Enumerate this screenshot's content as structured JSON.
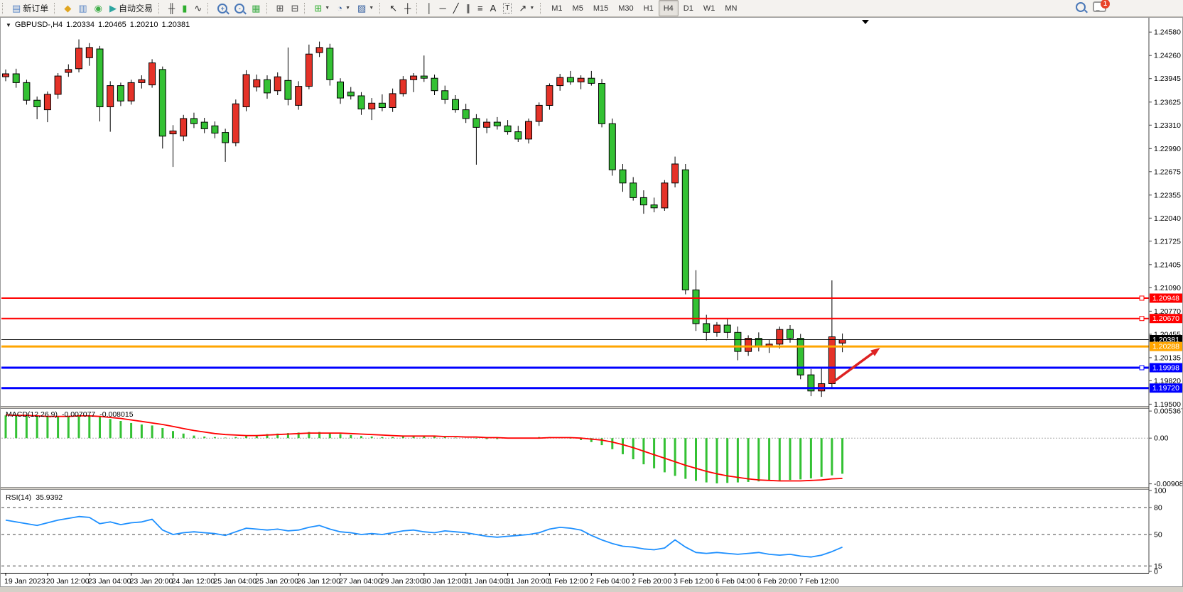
{
  "toolbar": {
    "groups": [
      {
        "items": [
          {
            "name": "new-order-button",
            "label": "新订单",
            "glyph": "▤",
            "color": "#5b87c5"
          }
        ]
      },
      {
        "items": [
          {
            "name": "metaquotes-community-button",
            "glyph": "◆",
            "color": "#e0a520"
          },
          {
            "name": "market-watch-button",
            "glyph": "▥",
            "color": "#5b87c5"
          },
          {
            "name": "signals-button",
            "glyph": "◉",
            "color": "#3fae49"
          },
          {
            "name": "autotrading-button",
            "label": "自动交易",
            "glyph": "▶",
            "color": "#2da5a0"
          }
        ]
      },
      {
        "items": [
          {
            "name": "bar-chart-button",
            "glyph": "╫",
            "color": "#333333"
          },
          {
            "name": "candlestick-chart-button",
            "glyph": "▮",
            "color": "#2fae2f"
          },
          {
            "name": "line-chart-button",
            "glyph": "∿",
            "color": "#333333"
          }
        ]
      },
      {
        "items": [
          {
            "name": "zoom-in-button",
            "glyph": "+",
            "magnifier": true
          },
          {
            "name": "zoom-out-button",
            "glyph": "-",
            "magnifier": true
          },
          {
            "name": "tile-windows-button",
            "glyph": "▦",
            "color": "#3fae49"
          }
        ]
      },
      {
        "items": [
          {
            "name": "new-chart-window-button",
            "glyph": "⊞",
            "color": "#444444"
          },
          {
            "name": "chart-profile-button",
            "glyph": "⊟",
            "color": "#444444"
          }
        ]
      },
      {
        "items": [
          {
            "name": "add-indicator-button",
            "glyph": "⊞",
            "color": "#2fae2f",
            "dropdown": true
          },
          {
            "name": "periods-clock-button",
            "glyph": "◔",
            "color": "#335e9e",
            "dropdown": true
          },
          {
            "name": "templates-button",
            "glyph": "▨",
            "color": "#335e9e",
            "dropdown": true
          }
        ]
      },
      {
        "items": [
          {
            "name": "cursor-button",
            "glyph": "↖",
            "color": "#222222"
          },
          {
            "name": "crosshair-button",
            "glyph": "┼",
            "color": "#222222"
          }
        ]
      },
      {
        "items": [
          {
            "name": "vertical-line-button",
            "glyph": "│",
            "color": "#222222"
          },
          {
            "name": "horizontal-line-button",
            "glyph": "─",
            "color": "#222222"
          },
          {
            "name": "trendline-button",
            "glyph": "╱",
            "color": "#222222"
          },
          {
            "name": "equidistant-channel-button",
            "glyph": "∥",
            "color": "#222222"
          },
          {
            "name": "fibonacci-button",
            "glyph": "≡",
            "color": "#222222"
          },
          {
            "name": "text-button",
            "glyph": "A",
            "color": "#222222"
          },
          {
            "name": "text-label-button",
            "glyph": "T",
            "color": "#222222",
            "boxed": true
          },
          {
            "name": "arrows-tool-button",
            "glyph": "↗",
            "color": "#222222",
            "dropdown": true
          }
        ]
      }
    ],
    "timeframes": [
      "M1",
      "M5",
      "M15",
      "M30",
      "H1",
      "H4",
      "D1",
      "W1",
      "MN"
    ],
    "active_timeframe": "H4",
    "chat_badge": "1"
  },
  "chart": {
    "header": {
      "symbol": "GBPUSD-,H4",
      "open": "1.20334",
      "high": "1.20465",
      "low": "1.20210",
      "close": "1.20381"
    },
    "macd_label": {
      "name": "MACD(12,26,9)",
      "main": "-0.007077",
      "signal": "-0.008015"
    },
    "rsi_label": {
      "name": "RSI(14)",
      "value": "35.9392"
    }
  },
  "chart_data": {
    "type": "candlestick",
    "symbol": "GBPUSD-",
    "timeframe": "H4",
    "price_axis": {
      "visible_range": [
        1.19475,
        1.24776
      ],
      "ticks": [
        1.2458,
        1.2426,
        1.23945,
        1.23625,
        1.2331,
        1.2299,
        1.22675,
        1.22355,
        1.2204,
        1.21725,
        1.21405,
        1.2109,
        1.2077,
        1.20455,
        1.20135,
        1.1982,
        1.195
      ]
    },
    "time_labels": [
      "19 Jan 2023",
      "20 Jan 12:00",
      "23 Jan 04:00",
      "23 Jan 20:00",
      "24 Jan 12:00",
      "25 Jan 04:00",
      "25 Jan 20:00",
      "26 Jan 12:00",
      "27 Jan 04:00",
      "29 Jan 23:00",
      "30 Jan 12:00",
      "31 Jan 04:00",
      "31 Jan 20:00",
      "1 Feb 12:00",
      "2 Feb 04:00",
      "2 Feb 20:00",
      "3 Feb 12:00",
      "6 Feb 04:00",
      "6 Feb 20:00",
      "7 Feb 12:00"
    ],
    "bars_per_time_tick": 4,
    "candles": {
      "open": [
        1.2397,
        1.2401,
        1.2389,
        1.2365,
        1.2352,
        1.2373,
        1.2403,
        1.2408,
        1.2423,
        1.2435,
        1.2356,
        1.2385,
        1.2364,
        1.2389,
        1.2386,
        1.2407,
        1.2319,
        1.2316,
        1.234,
        1.2335,
        1.233,
        1.2321,
        1.2307,
        1.2356,
        1.2383,
        1.2393,
        1.2378,
        1.2392,
        1.2358,
        1.2384,
        1.243,
        1.2436,
        1.239,
        1.2376,
        1.2371,
        1.2353,
        1.2361,
        1.2355,
        1.2374,
        1.2393,
        1.2398,
        1.2395,
        1.2378,
        1.2366,
        1.2352,
        1.234,
        1.2328,
        1.2335,
        1.233,
        1.2322,
        1.2312,
        1.2336,
        1.2358,
        1.2385,
        1.2396,
        1.239,
        1.2395,
        1.2388,
        1.2333,
        1.227,
        1.2252,
        1.2232,
        1.2222,
        1.2218,
        1.2252,
        1.227,
        1.2106,
        1.206,
        1.2048,
        1.2058,
        1.2048,
        1.2022,
        1.204,
        1.2028,
        1.2032,
        1.2052,
        1.204,
        1.199,
        1.1968,
        1.1978,
        1.20334
      ],
      "high": [
        1.2407,
        1.2408,
        1.2393,
        1.237,
        1.2377,
        1.2402,
        1.2414,
        1.2448,
        1.2443,
        1.2439,
        1.2391,
        1.2389,
        1.2393,
        1.2399,
        1.2421,
        1.2411,
        1.2331,
        1.2345,
        1.2348,
        1.2341,
        1.2336,
        1.2326,
        1.2366,
        1.2406,
        1.24,
        1.2399,
        1.2403,
        1.2437,
        1.2391,
        1.2441,
        1.2445,
        1.2442,
        1.2395,
        1.2383,
        1.2376,
        1.2368,
        1.2373,
        1.2381,
        1.2398,
        1.2402,
        1.2426,
        1.24,
        1.2385,
        1.2372,
        1.236,
        1.2346,
        1.234,
        1.2342,
        1.2338,
        1.233,
        1.234,
        1.2362,
        1.2388,
        1.2401,
        1.2405,
        1.2399,
        1.2405,
        1.2394,
        1.234,
        1.2278,
        1.226,
        1.2242,
        1.2232,
        1.2256,
        1.2288,
        1.2278,
        1.2133,
        1.2072,
        1.2062,
        1.2066,
        1.2056,
        1.2044,
        1.2048,
        1.2038,
        1.2056,
        1.2058,
        1.2046,
        1.1998,
        1.1999,
        1.2119,
        1.20465
      ],
      "low": [
        1.2391,
        1.2382,
        1.2359,
        1.2339,
        1.2335,
        1.2367,
        1.2397,
        1.2403,
        1.2412,
        1.2336,
        1.2322,
        1.2357,
        1.2359,
        1.2381,
        1.2382,
        1.2299,
        1.2274,
        1.2309,
        1.2327,
        1.232,
        1.2313,
        1.2281,
        1.2302,
        1.235,
        1.2377,
        1.2367,
        1.2372,
        1.2358,
        1.2352,
        1.238,
        1.2424,
        1.2385,
        1.236,
        1.2366,
        1.2345,
        1.2338,
        1.235,
        1.2349,
        1.237,
        1.2376,
        1.239,
        1.2372,
        1.236,
        1.2348,
        1.2334,
        1.2277,
        1.232,
        1.2325,
        1.2318,
        1.2308,
        1.2306,
        1.233,
        1.2352,
        1.2378,
        1.2386,
        1.238,
        1.2385,
        1.2328,
        1.2262,
        1.224,
        1.2228,
        1.221,
        1.2212,
        1.2214,
        1.2246,
        1.21,
        1.205,
        1.2037,
        1.2042,
        1.204,
        1.201,
        1.2016,
        1.2022,
        1.202,
        1.2026,
        1.2034,
        1.1984,
        1.1961,
        1.196,
        1.1972,
        1.2021
      ],
      "close": [
        1.2401,
        1.2389,
        1.2365,
        1.2356,
        1.2373,
        1.2398,
        1.2407,
        1.2436,
        1.2437,
        1.2356,
        1.2385,
        1.2364,
        1.2389,
        1.2393,
        1.2416,
        1.2316,
        1.2323,
        1.234,
        1.2333,
        1.2326,
        1.232,
        1.2307,
        1.236,
        1.24,
        1.2393,
        1.2375,
        1.2397,
        1.2366,
        1.2384,
        1.2428,
        1.2437,
        1.2393,
        1.2368,
        1.2371,
        1.2353,
        1.2361,
        1.2355,
        1.2374,
        1.2393,
        1.2398,
        1.2395,
        1.2378,
        1.2366,
        1.2352,
        1.234,
        1.2328,
        1.2335,
        1.233,
        1.2322,
        1.2312,
        1.2336,
        1.2358,
        1.2385,
        1.2396,
        1.239,
        1.2395,
        1.2388,
        1.2333,
        1.227,
        1.2252,
        1.2232,
        1.2222,
        1.2218,
        1.2252,
        1.2278,
        1.2106,
        1.206,
        1.2048,
        1.2058,
        1.2048,
        1.2022,
        1.204,
        1.2028,
        1.2032,
        1.2052,
        1.204,
        1.199,
        1.1968,
        1.1978,
        1.2042,
        1.20381
      ]
    },
    "hlines": [
      {
        "price": 1.20948,
        "label": "1.20948",
        "color": "#ff0000",
        "width": 2,
        "handle": true
      },
      {
        "price": 1.2067,
        "label": "1.20670",
        "color": "#ff0000",
        "width": 2,
        "handle": true
      },
      {
        "price": 1.20381,
        "label": "1.20381",
        "color": "#000000",
        "width": 1,
        "handle": false,
        "is_current_price": true
      },
      {
        "price": 1.20288,
        "label": "1.20288",
        "color": "#ffa500",
        "width": 3,
        "handle": false
      },
      {
        "price": 1.19998,
        "label": "1.19998",
        "color": "#0000ff",
        "width": 3,
        "handle": true
      },
      {
        "price": 1.1972,
        "label": "1.19720",
        "color": "#0000ff",
        "width": 3,
        "handle": false
      }
    ],
    "current_price": 1.20381,
    "arrow": {
      "from_bar": 79,
      "from_price": 1.1979,
      "to_bar": 83.6,
      "to_price": 1.2027,
      "color": "#dd2222"
    },
    "macd": {
      "range": [
        -0.0097,
        0.0058
      ],
      "axis_ticks": [
        0.005367,
        0,
        -0.009085
      ],
      "axis_tick_labels": [
        "0.005367",
        "0.00",
        "-0.009085"
      ],
      "hist": [
        0.0045,
        0.0046,
        0.0044,
        0.0043,
        0.0042,
        0.0043,
        0.0044,
        0.0046,
        0.0045,
        0.0042,
        0.0038,
        0.0034,
        0.003,
        0.0027,
        0.0025,
        0.002,
        0.0014,
        0.0009,
        0.0005,
        0.0003,
        0.0002,
        0.0001,
        0.0002,
        0.0004,
        0.0006,
        0.0008,
        0.0009,
        0.001,
        0.0011,
        0.0012,
        0.0012,
        0.001,
        0.0008,
        0.0006,
        0.0004,
        0.0003,
        0.0002,
        0.0002,
        0.0003,
        0.0004,
        0.0004,
        0.0003,
        0.0002,
        0.0001,
        0.0,
        -0.0001,
        -0.0002,
        -0.0002,
        -0.0001,
        0.0,
        0.0001,
        0.0002,
        0.0002,
        0.0001,
        -0.0001,
        -0.0004,
        -0.0008,
        -0.0014,
        -0.0022,
        -0.0032,
        -0.0042,
        -0.0052,
        -0.006,
        -0.0068,
        -0.0075,
        -0.0081,
        -0.0085,
        -0.0088,
        -0.009,
        -0.0089,
        -0.0088,
        -0.0087,
        -0.0086,
        -0.0085,
        -0.0084,
        -0.0083,
        -0.0082,
        -0.008,
        -0.0077,
        -0.0074,
        -0.007077
      ],
      "signal": [
        0.0046,
        0.0045,
        0.0045,
        0.0044,
        0.0043,
        0.0043,
        0.0043,
        0.0044,
        0.0044,
        0.0043,
        0.0041,
        0.0039,
        0.0036,
        0.0033,
        0.003,
        0.0027,
        0.0023,
        0.0019,
        0.0015,
        0.0012,
        0.0009,
        0.0007,
        0.0006,
        0.0005,
        0.0005,
        0.0006,
        0.0007,
        0.0008,
        0.0009,
        0.001,
        0.001,
        0.001,
        0.001,
        0.0009,
        0.0008,
        0.0007,
        0.0006,
        0.0005,
        0.0004,
        0.0004,
        0.0004,
        0.0004,
        0.0003,
        0.0003,
        0.0002,
        0.0002,
        0.0001,
        0.0001,
        0.0,
        0.0,
        0.0,
        0.0,
        0.0001,
        0.0001,
        0.0001,
        0.0,
        -0.0002,
        -0.0004,
        -0.0008,
        -0.0013,
        -0.0019,
        -0.0026,
        -0.0033,
        -0.004,
        -0.0047,
        -0.0054,
        -0.006,
        -0.0066,
        -0.0071,
        -0.0075,
        -0.0078,
        -0.0081,
        -0.0083,
        -0.0084,
        -0.0085,
        -0.0085,
        -0.0085,
        -0.0084,
        -0.0083,
        -0.0081,
        -0.008015
      ]
    },
    "rsi": {
      "range": [
        0,
        100
      ],
      "axis_ticks": [
        100,
        80,
        50,
        15,
        0
      ],
      "axis_tick_labels": [
        "100",
        "80",
        "50",
        "15",
        "0"
      ],
      "dashed_levels": [
        80,
        50,
        15
      ],
      "values": [
        66,
        64,
        62,
        60,
        63,
        66,
        68,
        70,
        69,
        62,
        64,
        61,
        63,
        64,
        67,
        55,
        50,
        52,
        53,
        52,
        51,
        49,
        53,
        57,
        56,
        55,
        56,
        54,
        55,
        58,
        60,
        56,
        53,
        52,
        50,
        51,
        50,
        52,
        54,
        55,
        53,
        52,
        54,
        53,
        52,
        50,
        48,
        47,
        48,
        49,
        50,
        52,
        56,
        58,
        57,
        55,
        49,
        44,
        40,
        37,
        36,
        34,
        33,
        35,
        44,
        36,
        30,
        29,
        30,
        29,
        28,
        29,
        30,
        28,
        27,
        28,
        26,
        25,
        27,
        31,
        35.9392
      ]
    },
    "colors": {
      "bull": "#e53228",
      "bear": "#33c133",
      "wick": "#000000",
      "macd_hist": "#33c133",
      "macd_signal": "#ff0000",
      "rsi_line": "#1e90ff",
      "arrow": "#dd2222",
      "badge_text": "#ffffff"
    }
  }
}
